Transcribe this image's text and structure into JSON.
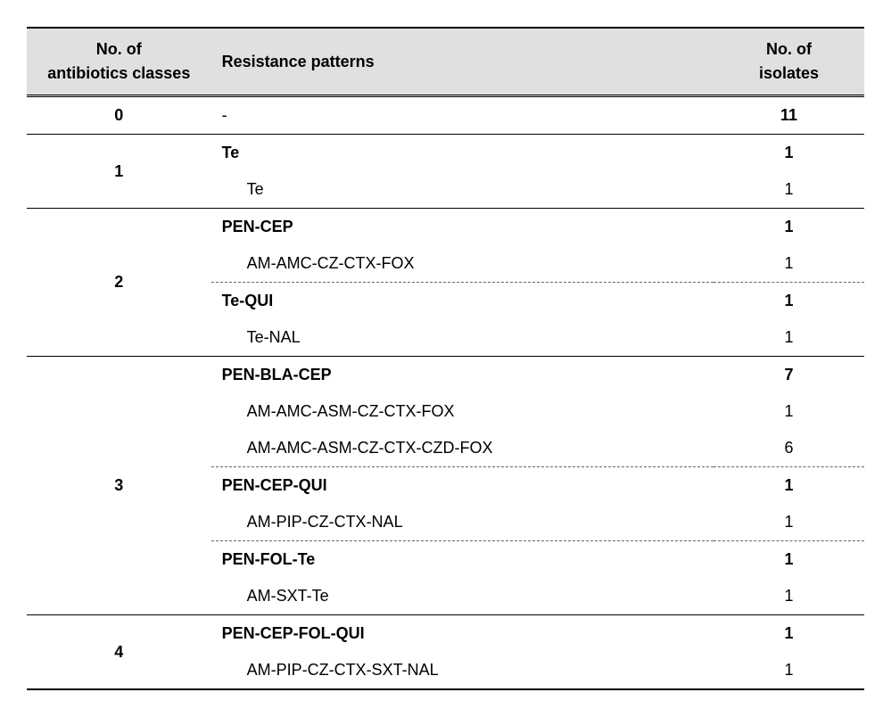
{
  "table": {
    "columns": {
      "classes": {
        "line1": "No. of",
        "line2": "antibiotics classes"
      },
      "patterns": "Resistance patterns",
      "isolates": {
        "line1": "No. of",
        "line2": "isolates"
      }
    },
    "header_bg": "#e0e0e0",
    "row0": {
      "class": "0",
      "pattern": "-",
      "count": "11"
    },
    "row1_group": {
      "class": "1"
    },
    "row1_0": {
      "pattern": "Te",
      "count": "1"
    },
    "row1_1": {
      "pattern": "Te",
      "count": "1"
    },
    "row2_group": {
      "class": "2"
    },
    "row2_0": {
      "pattern": "PEN-CEP",
      "count": "1"
    },
    "row2_1": {
      "pattern": "AM-AMC-CZ-CTX-FOX",
      "count": "1"
    },
    "row2_2": {
      "pattern": "Te-QUI",
      "count": "1"
    },
    "row2_3": {
      "pattern": "Te-NAL",
      "count": "1"
    },
    "row3_group": {
      "class": "3"
    },
    "row3_0": {
      "pattern": "PEN-BLA-CEP",
      "count": "7"
    },
    "row3_1": {
      "pattern": "AM-AMC-ASM-CZ-CTX-FOX",
      "count": "1"
    },
    "row3_2": {
      "pattern": "AM-AMC-ASM-CZ-CTX-CZD-FOX",
      "count": "6"
    },
    "row3_3": {
      "pattern": "PEN-CEP-QUI",
      "count": "1"
    },
    "row3_4": {
      "pattern": "AM-PIP-CZ-CTX-NAL",
      "count": "1"
    },
    "row3_5": {
      "pattern": "PEN-FOL-Te",
      "count": "1"
    },
    "row3_6": {
      "pattern": "AM-SXT-Te",
      "count": "1"
    },
    "row4_group": {
      "class": "4"
    },
    "row4_0": {
      "pattern": "PEN-CEP-FOL-QUI",
      "count": "1"
    },
    "row4_1": {
      "pattern": "AM-PIP-CZ-CTX-SXT-NAL",
      "count": "1"
    }
  }
}
